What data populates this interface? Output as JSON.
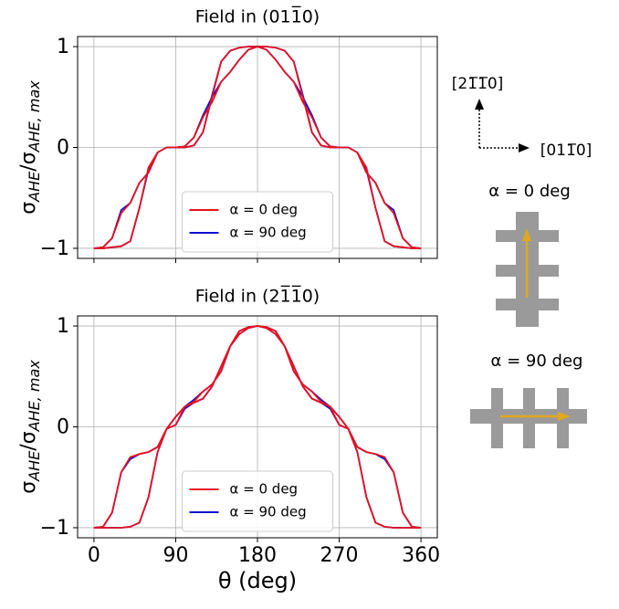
{
  "chart_data": [
    {
      "type": "line",
      "title": "Field in (011̅0)",
      "ylabel": [
        {
          "text": "σ"
        },
        {
          "text": "AHE",
          "style": "sub"
        },
        {
          "text": "/σ"
        },
        {
          "text": "AHE, max",
          "style": "sub"
        }
      ],
      "x": [
        0,
        10,
        20,
        30,
        40,
        50,
        60,
        70,
        80,
        90,
        100,
        110,
        120,
        130,
        140,
        150,
        160,
        170,
        180,
        190,
        200,
        210,
        220,
        230,
        240,
        250,
        260,
        270,
        280,
        290,
        300,
        310,
        320,
        330,
        340,
        350,
        360,
        360,
        350,
        340,
        330,
        320,
        310,
        300,
        290,
        280,
        270,
        260,
        250,
        240,
        230,
        220,
        210,
        200,
        190,
        180,
        170,
        160,
        150,
        140,
        130,
        120,
        110,
        100,
        90,
        80,
        70,
        60,
        50,
        40,
        30,
        20,
        10,
        0
      ],
      "series": [
        {
          "name": "α = 0 deg",
          "color": "#e8101e",
          "values": [
            -1,
            -0.99,
            -0.9,
            -0.65,
            -0.55,
            -0.35,
            -0.25,
            -0.05,
            0,
            0,
            0.01,
            0.1,
            0.3,
            0.45,
            0.65,
            0.75,
            0.87,
            0.97,
            1,
            1,
            0.99,
            0.96,
            0.85,
            0.5,
            0.15,
            0.02,
            0,
            0,
            0,
            -0.05,
            -0.2,
            -0.6,
            -0.93,
            -0.98,
            -0.99,
            -1,
            -1,
            -1,
            -0.99,
            -0.9,
            -0.65,
            -0.55,
            -0.35,
            -0.25,
            -0.05,
            0,
            0,
            0.01,
            0.1,
            0.3,
            0.45,
            0.65,
            0.75,
            0.87,
            0.97,
            1,
            1,
            0.99,
            0.96,
            0.85,
            0.5,
            0.15,
            0.02,
            0,
            0,
            0,
            -0.05,
            -0.2,
            -0.6,
            -0.93,
            -0.98,
            -0.99,
            -1,
            -1
          ]
        },
        {
          "name": "α = 90 deg",
          "color": "#1010d0",
          "values": [
            -1,
            -0.99,
            -0.9,
            -0.62,
            -0.55,
            -0.35,
            -0.25,
            -0.05,
            0,
            0,
            0.01,
            0.1,
            0.32,
            0.5,
            0.65,
            0.75,
            0.87,
            0.97,
            1,
            1,
            0.99,
            0.96,
            0.85,
            0.52,
            0.15,
            0.02,
            0,
            0,
            0,
            -0.05,
            -0.22,
            -0.6,
            -0.93,
            -0.98,
            -0.99,
            -1,
            -1,
            -1,
            -0.99,
            -0.9,
            -0.62,
            -0.55,
            -0.35,
            -0.25,
            -0.05,
            0,
            0,
            0.01,
            0.1,
            0.32,
            0.5,
            0.65,
            0.75,
            0.87,
            0.97,
            1,
            1,
            0.99,
            0.96,
            0.85,
            0.52,
            0.15,
            0.02,
            0,
            0,
            0,
            -0.05,
            -0.22,
            -0.6,
            -0.93,
            -0.98,
            -0.99,
            -1,
            -1
          ]
        }
      ],
      "xlim": [
        -18,
        378
      ],
      "xticks": [
        0,
        90,
        180,
        270,
        360
      ],
      "xtick_labels": false,
      "ylim": [
        -1.1,
        1.1
      ],
      "yticks": [
        {
          "value": -1,
          "label": "−1"
        },
        0,
        1
      ],
      "grid": true,
      "legend": "lower center"
    },
    {
      "type": "line",
      "title": "Field in (21̅1̅0)",
      "ylabel": [
        {
          "text": "σ"
        },
        {
          "text": "AHE",
          "style": "sub"
        },
        {
          "text": "/σ"
        },
        {
          "text": "AHE, max",
          "style": "sub"
        }
      ],
      "xlabel": "θ (deg)",
      "x": [
        0,
        10,
        20,
        30,
        40,
        50,
        60,
        70,
        80,
        90,
        100,
        110,
        120,
        130,
        140,
        150,
        160,
        170,
        180,
        190,
        200,
        210,
        220,
        230,
        240,
        250,
        260,
        270,
        280,
        290,
        300,
        310,
        320,
        330,
        340,
        350,
        360,
        360,
        350,
        340,
        330,
        320,
        310,
        300,
        290,
        280,
        270,
        260,
        250,
        240,
        230,
        220,
        210,
        200,
        190,
        180,
        170,
        160,
        150,
        140,
        130,
        120,
        110,
        100,
        90,
        80,
        70,
        60,
        50,
        40,
        30,
        20,
        10,
        0
      ],
      "series": [
        {
          "name": "α = 0 deg",
          "color": "#e8101e",
          "values": [
            -1,
            -0.99,
            -0.85,
            -0.45,
            -0.3,
            -0.27,
            -0.25,
            -0.2,
            -0.02,
            0.02,
            0.2,
            0.24,
            0.28,
            0.4,
            0.6,
            0.8,
            0.92,
            0.98,
            1,
            0.99,
            0.95,
            0.8,
            0.55,
            0.42,
            0.35,
            0.25,
            0.2,
            0.1,
            -0.02,
            -0.25,
            -0.7,
            -0.95,
            -0.99,
            -1,
            -1,
            -1,
            -1,
            -1,
            -0.99,
            -0.85,
            -0.45,
            -0.3,
            -0.27,
            -0.25,
            -0.2,
            -0.02,
            0.02,
            0.2,
            0.24,
            0.28,
            0.4,
            0.6,
            0.8,
            0.92,
            0.98,
            1,
            0.99,
            0.95,
            0.8,
            0.55,
            0.42,
            0.35,
            0.25,
            0.2,
            0.1,
            -0.02,
            -0.25,
            -0.7,
            -0.95,
            -0.99,
            -1,
            -1,
            -1,
            -1
          ]
        },
        {
          "name": "α = 90 deg",
          "color": "#1010d0",
          "values": [
            -1,
            -0.99,
            -0.85,
            -0.45,
            -0.32,
            -0.27,
            -0.25,
            -0.2,
            -0.02,
            0.02,
            0.18,
            0.24,
            0.28,
            0.4,
            0.6,
            0.8,
            0.92,
            0.98,
            1,
            0.99,
            0.95,
            0.8,
            0.55,
            0.42,
            0.35,
            0.27,
            0.2,
            0.1,
            -0.02,
            -0.25,
            -0.7,
            -0.95,
            -0.99,
            -1,
            -1,
            -1,
            -1,
            -1,
            -0.99,
            -0.85,
            -0.45,
            -0.32,
            -0.27,
            -0.25,
            -0.2,
            -0.02,
            0.02,
            0.18,
            0.24,
            0.28,
            0.4,
            0.6,
            0.8,
            0.92,
            0.98,
            1,
            0.99,
            0.95,
            0.8,
            0.55,
            0.42,
            0.35,
            0.27,
            0.2,
            0.1,
            -0.02,
            -0.25,
            -0.7,
            -0.95,
            -0.99,
            -1,
            -1,
            -1,
            -1
          ]
        }
      ],
      "xlim": [
        -18,
        378
      ],
      "xticks": [
        0,
        90,
        180,
        270,
        360
      ],
      "xtick_labels": true,
      "ylim": [
        -1.1,
        1.1
      ],
      "yticks": [
        {
          "value": -1,
          "label": "−1"
        },
        0,
        1
      ],
      "grid": true,
      "legend": "lower center"
    }
  ],
  "side_panel": {
    "axis_up": "[21̅1̅0]",
    "axis_right": "[011̅0]",
    "labels": [
      {
        "text": "α = 0 deg",
        "color": "#ff0000"
      },
      {
        "text": "α = 90 deg",
        "color": "#0000ff"
      }
    ]
  }
}
